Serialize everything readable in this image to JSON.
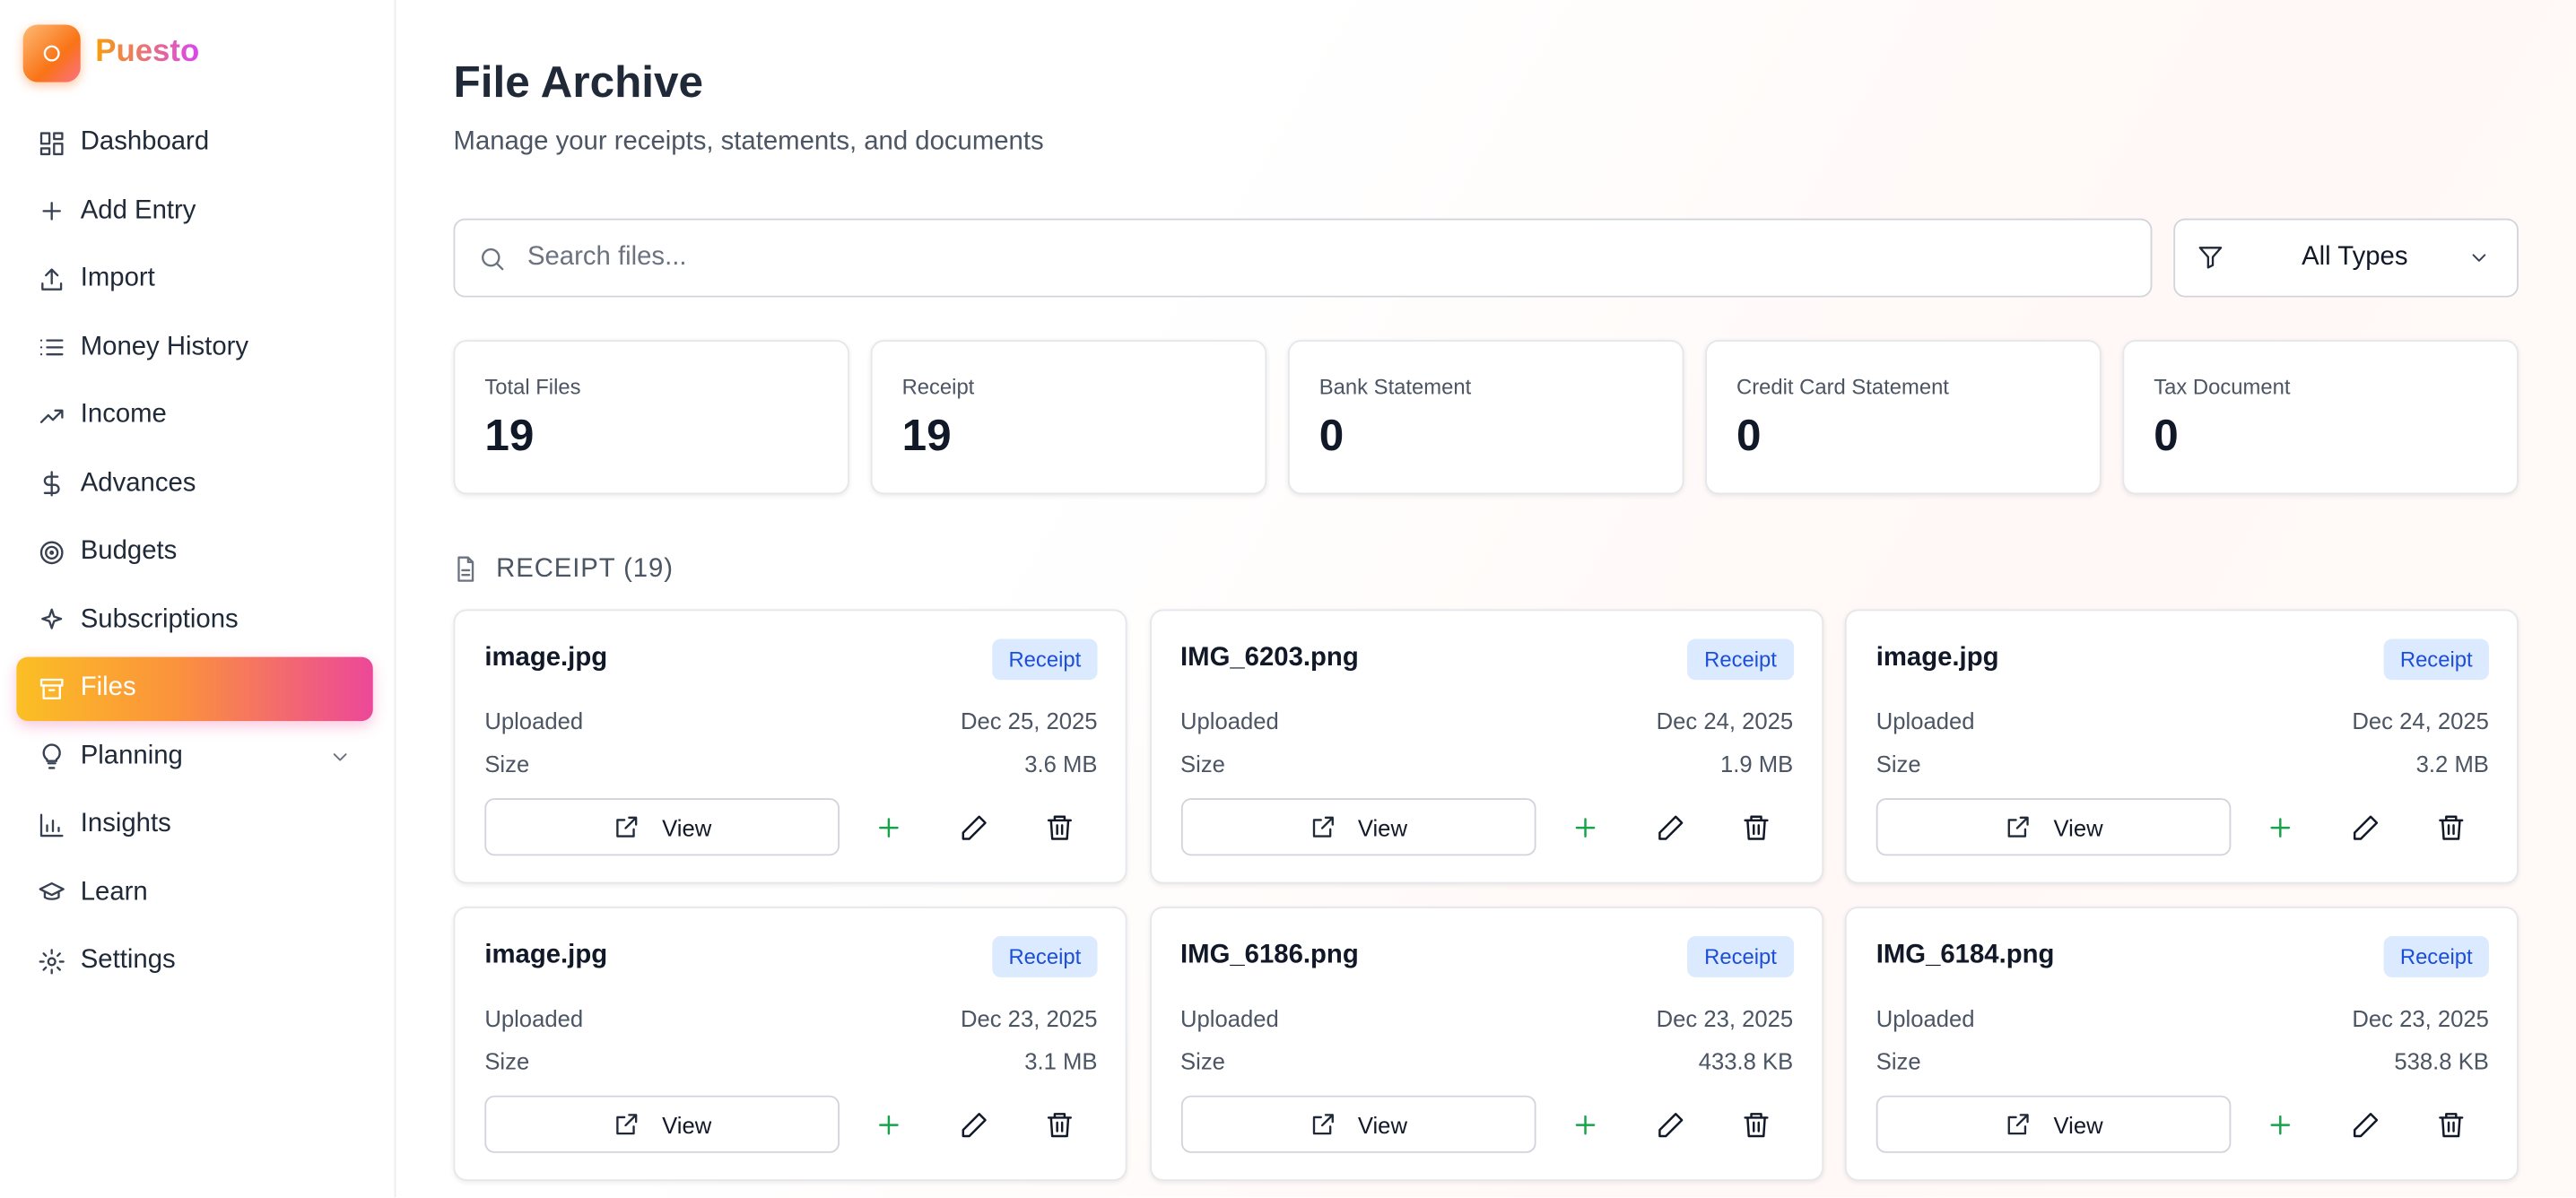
{
  "sidebar": {
    "brand": "Puesto",
    "nav": [
      "Dashboard",
      "Add Entry",
      "Import",
      "Money History",
      "Income",
      "Advances",
      "Budgets",
      "Subscriptions",
      "Files",
      "Planning",
      "Insights",
      "Learn",
      "Settings"
    ]
  },
  "header": {
    "title": "File Archive",
    "subtitle": "Manage your receipts, statements, and documents"
  },
  "search": {
    "placeholder": "Search files..."
  },
  "filter": {
    "label": "All Types"
  },
  "stats": [
    {
      "label": "Total Files",
      "value": "19"
    },
    {
      "label": "Receipt",
      "value": "19"
    },
    {
      "label": "Bank Statement",
      "value": "0"
    },
    {
      "label": "Credit Card Statement",
      "value": "0"
    },
    {
      "label": "Tax Document",
      "value": "0"
    }
  ],
  "section": {
    "title": "RECEIPT (19)"
  },
  "files": [
    {
      "name": "image.jpg",
      "badge": "Receipt",
      "uploaded_label": "Uploaded",
      "date": "Dec 25, 2025",
      "size_label": "Size",
      "size": "3.6 MB",
      "view": "View"
    },
    {
      "name": "IMG_6203.png",
      "badge": "Receipt",
      "uploaded_label": "Uploaded",
      "date": "Dec 24, 2025",
      "size_label": "Size",
      "size": "1.9 MB",
      "view": "View"
    },
    {
      "name": "image.jpg",
      "badge": "Receipt",
      "uploaded_label": "Uploaded",
      "date": "Dec 24, 2025",
      "size_label": "Size",
      "size": "3.2 MB",
      "view": "View"
    },
    {
      "name": "image.jpg",
      "badge": "Receipt",
      "uploaded_label": "Uploaded",
      "date": "Dec 23, 2025",
      "size_label": "Size",
      "size": "3.1 MB",
      "view": "View"
    },
    {
      "name": "IMG_6186.png",
      "badge": "Receipt",
      "uploaded_label": "Uploaded",
      "date": "Dec 23, 2025",
      "size_label": "Size",
      "size": "433.8 KB",
      "view": "View"
    },
    {
      "name": "IMG_6184.png",
      "badge": "Receipt",
      "uploaded_label": "Uploaded",
      "date": "Dec 23, 2025",
      "size_label": "Size",
      "size": "538.8 KB",
      "view": "View"
    }
  ]
}
